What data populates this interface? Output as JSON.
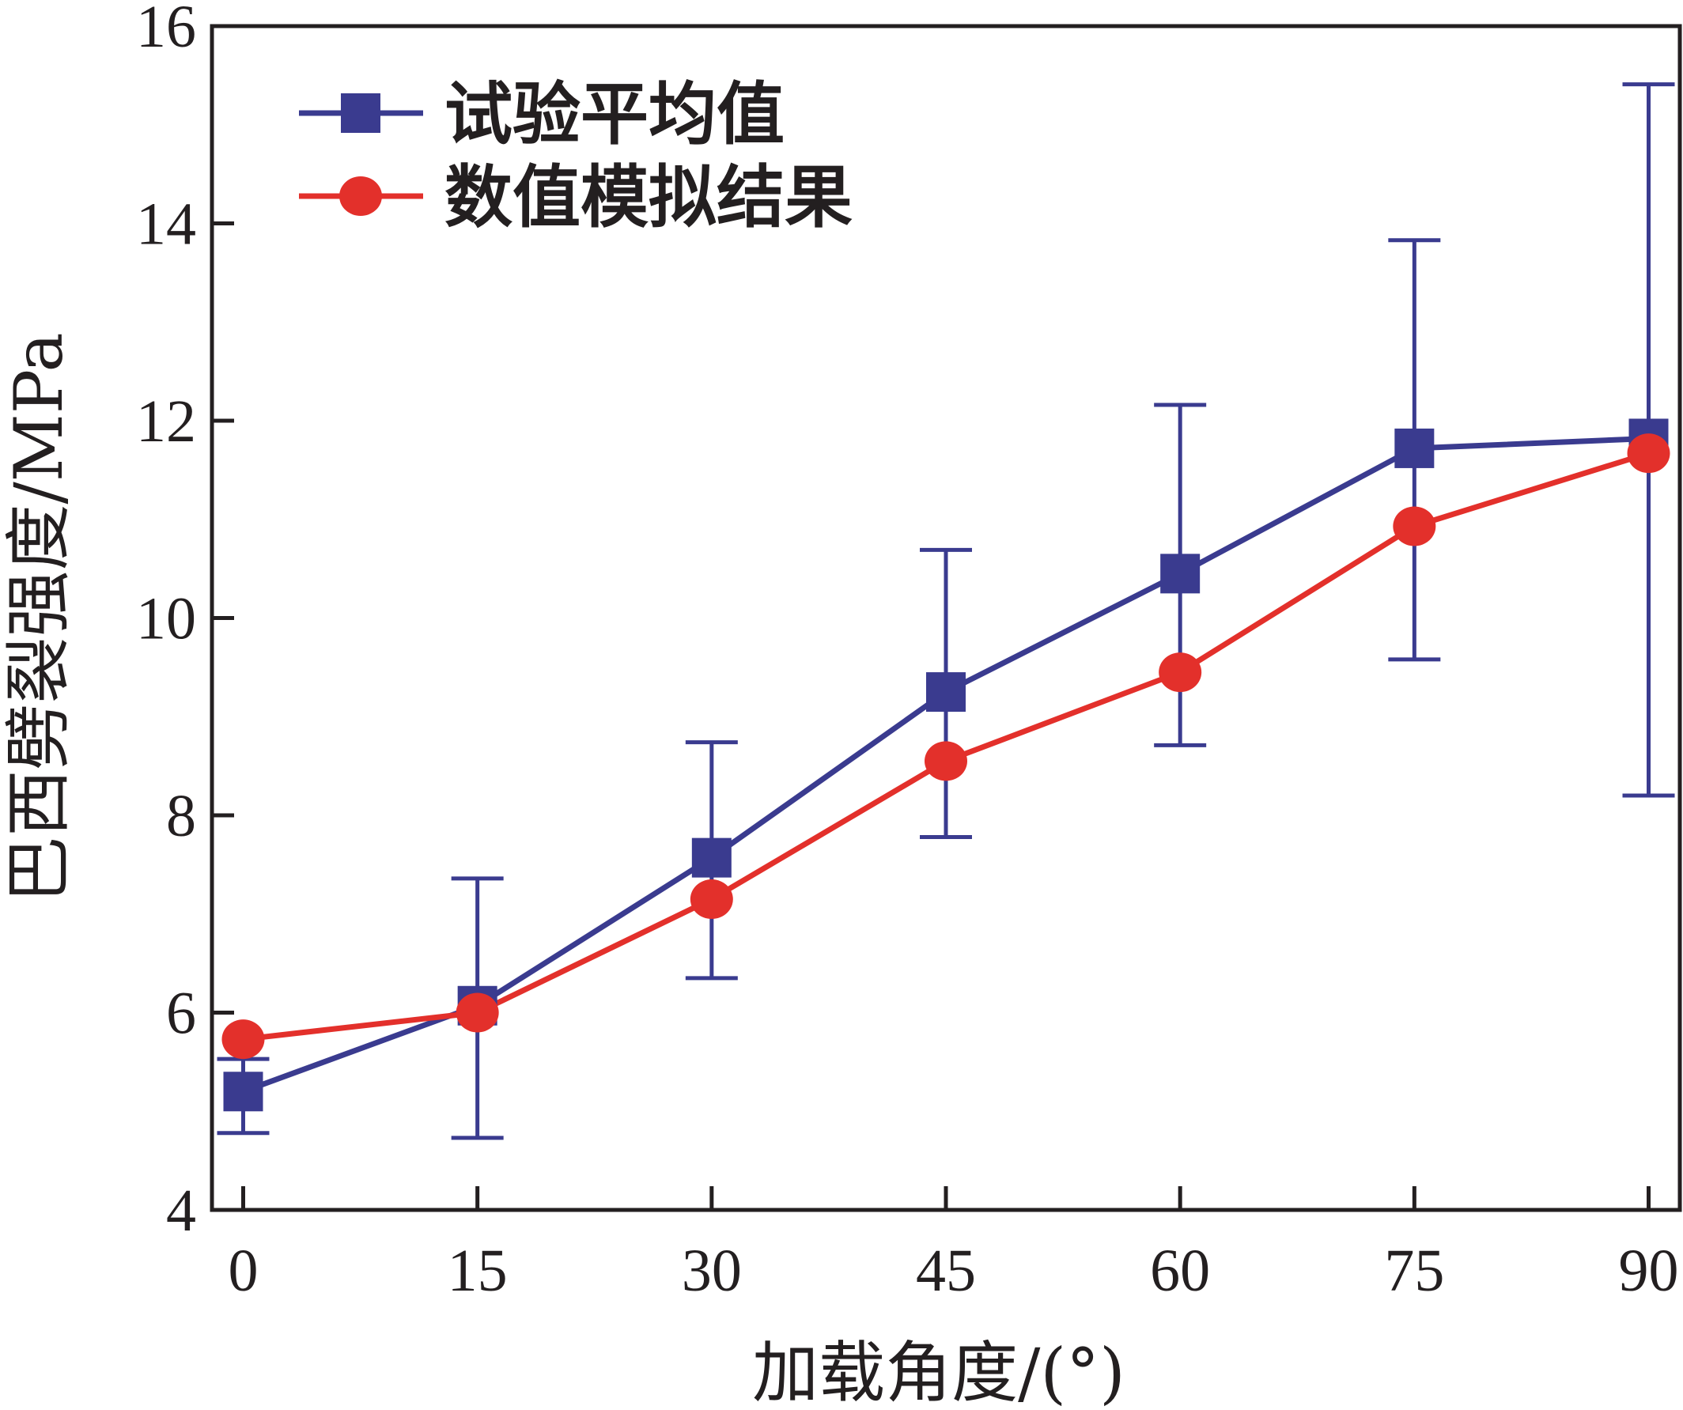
{
  "chart_data": {
    "type": "line",
    "title": "",
    "xlabel": "加载角度/(°)",
    "ylabel": "巴西劈裂强度/MPa",
    "x": [
      0,
      15,
      30,
      45,
      60,
      75,
      90
    ],
    "xticks": [
      "0",
      "15",
      "30",
      "45",
      "60",
      "75",
      "90"
    ],
    "yticks": [
      "4",
      "6",
      "8",
      "10",
      "12",
      "14",
      "16"
    ],
    "xlim": [
      -2,
      92
    ],
    "ylim": [
      4,
      16
    ],
    "grid": false,
    "legend_position": "top-left",
    "series": [
      {
        "name": "试验平均值",
        "marker": "square",
        "color": "#3a3b8f",
        "values": [
          5.2,
          6.07,
          7.57,
          9.25,
          10.45,
          11.72,
          11.82
        ],
        "error_low": [
          4.78,
          4.73,
          6.35,
          7.78,
          8.71,
          9.58,
          8.2
        ],
        "error_high": [
          5.53,
          7.36,
          8.74,
          10.69,
          12.16,
          13.83,
          15.41
        ]
      },
      {
        "name": "数值模拟结果",
        "marker": "circle",
        "color": "#e3302b",
        "values": [
          5.73,
          6.0,
          7.15,
          8.55,
          9.45,
          10.93,
          11.67
        ]
      }
    ]
  }
}
